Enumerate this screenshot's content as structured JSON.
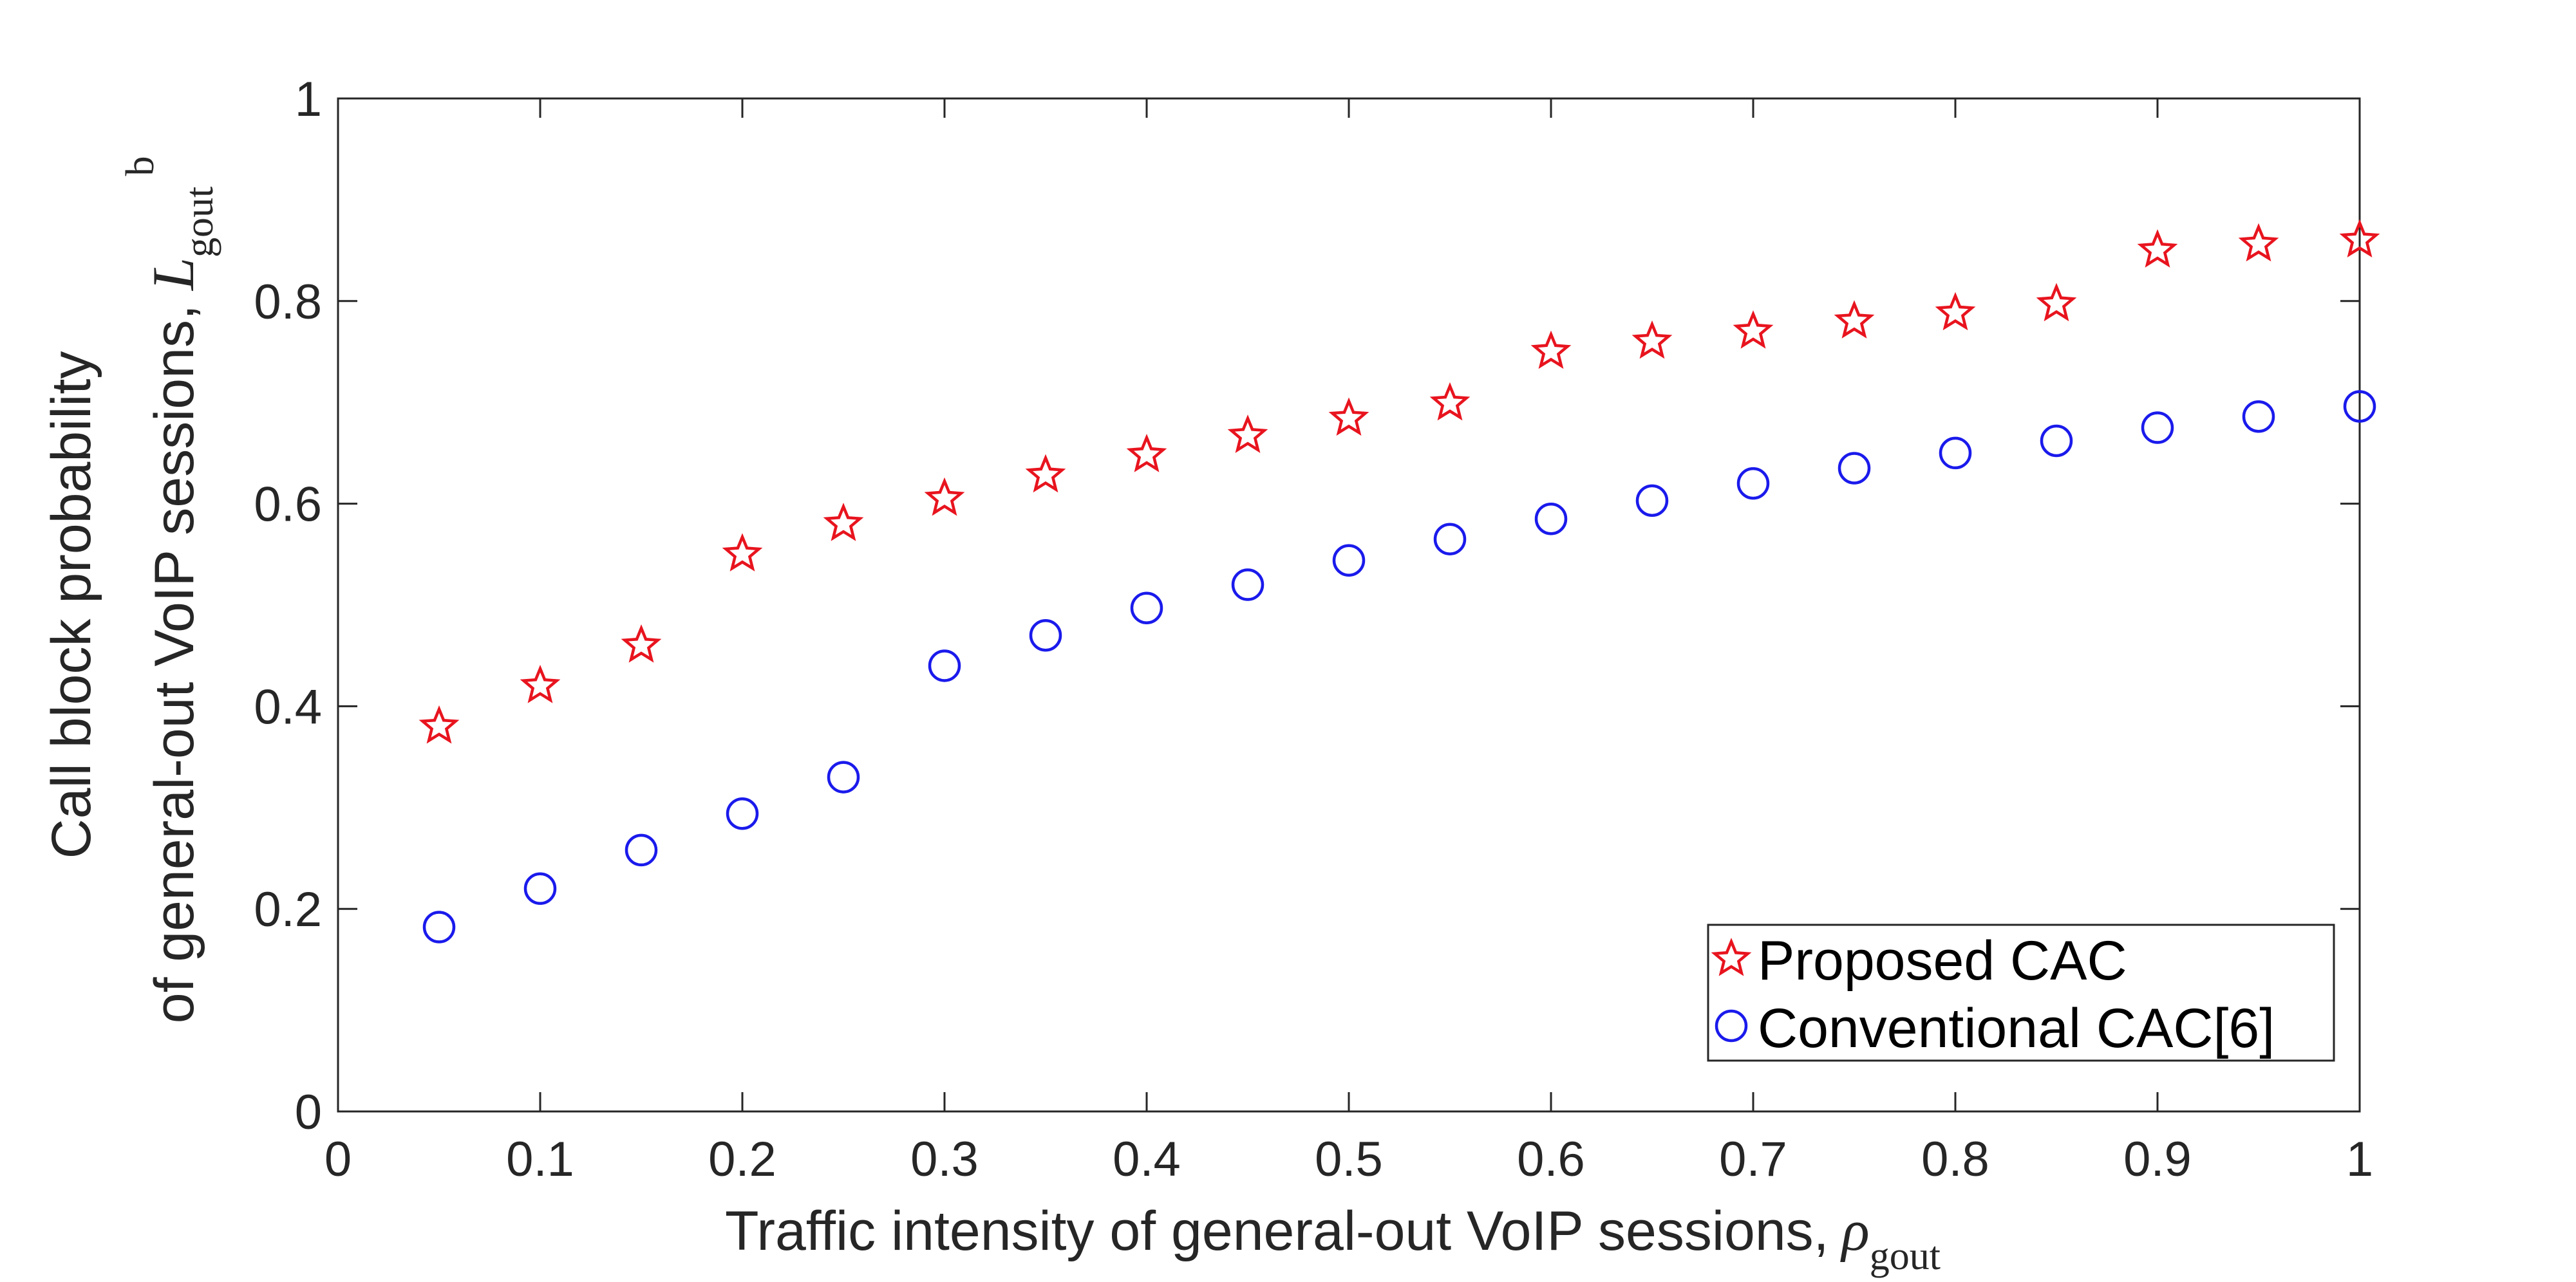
{
  "chart_data": {
    "type": "scatter",
    "title": "",
    "xlabel": "Traffic intensity of general-out VoIP sessions,",
    "xlabel_symbol": "ρ",
    "xlabel_subscript": "gout",
    "ylabel_line1": "Call block probability",
    "ylabel_line2": "of general-out VoIP sessions,",
    "ylabel_symbol": "L",
    "ylabel_superscript": "b",
    "ylabel_subscript": "gout",
    "xlim": [
      0,
      1
    ],
    "ylim": [
      0,
      1
    ],
    "xticks": [
      0,
      0.1,
      0.2,
      0.3,
      0.4,
      0.5,
      0.6,
      0.7,
      0.8,
      0.9,
      1
    ],
    "xtick_labels": [
      "0",
      "0.1",
      "0.2",
      "0.3",
      "0.4",
      "0.5",
      "0.6",
      "0.7",
      "0.8",
      "0.9",
      "1"
    ],
    "yticks": [
      0,
      0.2,
      0.4,
      0.6,
      0.8,
      1
    ],
    "ytick_labels": [
      "0",
      "0.2",
      "0.4",
      "0.6",
      "0.8",
      "1"
    ],
    "grid": false,
    "legend_position": "bottom-right",
    "x": [
      0.05,
      0.1,
      0.15,
      0.2,
      0.25,
      0.3,
      0.35,
      0.4,
      0.45,
      0.5,
      0.55,
      0.6,
      0.65,
      0.7,
      0.75,
      0.8,
      0.85,
      0.9,
      0.95,
      1.0
    ],
    "series": [
      {
        "name": "Proposed CAC",
        "marker": "star",
        "color": "#e8141e",
        "values": [
          0.38,
          0.42,
          0.46,
          0.55,
          0.58,
          0.605,
          0.628,
          0.648,
          0.667,
          0.684,
          0.699,
          0.75,
          0.76,
          0.77,
          0.78,
          0.788,
          0.797,
          0.85,
          0.856,
          0.86
        ]
      },
      {
        "name": "Conventional CAC[6]",
        "marker": "circle",
        "color": "#1a1aec",
        "values": [
          0.182,
          0.22,
          0.258,
          0.294,
          0.33,
          0.44,
          0.47,
          0.497,
          0.52,
          0.544,
          0.565,
          0.585,
          0.603,
          0.62,
          0.635,
          0.65,
          0.662,
          0.675,
          0.686,
          0.696
        ]
      }
    ]
  }
}
